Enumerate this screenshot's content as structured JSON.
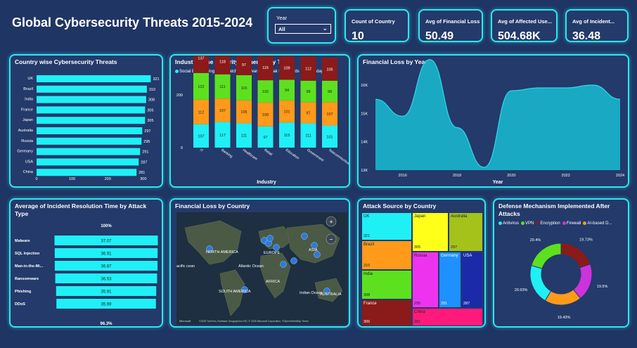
{
  "title": "Global Cybersecurity Threats 2015-2024",
  "slicer": {
    "label": "Year",
    "value": "All",
    "chevron": "chevron-down-icon"
  },
  "kpis": [
    {
      "label": "Count of Country",
      "value": "10"
    },
    {
      "label": "Avg of Financial Loss",
      "value": "50.49"
    },
    {
      "label": "Avg of Affected Use...",
      "value": "504.68K"
    },
    {
      "label": "Avg of Incident...",
      "value": "36.48"
    }
  ],
  "country_chart": {
    "title": "Country wise Cybersecurity Threats",
    "color": "#1ff0f5",
    "chart_data": {
      "type": "bar",
      "categories": [
        "UK",
        "Brazil",
        "India",
        "France",
        "Japan",
        "Australia",
        "Russia",
        "Germany",
        "USA",
        "China"
      ],
      "values": [
        321,
        310,
        308,
        305,
        305,
        297,
        295,
        291,
        287,
        281
      ],
      "xticks": [
        "0",
        "100",
        "200",
        "300"
      ],
      "xlim": [
        0,
        330
      ]
    }
  },
  "industry_chart": {
    "title": "Industry wise Security Vulnerability Type",
    "xlabel": "Industry",
    "legend": [
      {
        "name": "Social Engineering",
        "color": "#1ff0f5"
      },
      {
        "name": "Unpatched Software",
        "color": "#ff9a1a"
      },
      {
        "name": "Weak Passwords",
        "color": "#5de11f"
      },
      {
        "name": "Zero-day",
        "color": "#8b1a1a"
      }
    ],
    "chart_data": {
      "type": "bar",
      "stacked": true,
      "categories": [
        "IT",
        "Banking",
        "Healthcare",
        "Retail",
        "Education",
        "Government",
        "Telecommunications"
      ],
      "series": [
        {
          "name": "Social Engineering",
          "values": [
            107,
            117,
            111,
            97,
            115,
            111,
            101
          ]
        },
        {
          "name": "Unpatched Software",
          "values": [
            112,
            107,
            105,
            109,
            101,
            97,
            107
          ]
        },
        {
          "name": "Weak Passwords",
          "values": [
            122,
            111,
            115,
            102,
            94,
            98,
            98
          ]
        },
        {
          "name": "Zero-day",
          "values": [
            137,
            118,
            97,
            115,
            109,
            112,
            105
          ]
        }
      ],
      "yticks": [
        "0",
        "200",
        "400"
      ],
      "ylim": [
        0,
        480
      ]
    }
  },
  "loss_year_chart": {
    "title": "Financial Loss by Year",
    "xlabel": "Year",
    "color": "#1ab6cc",
    "chart_data": {
      "type": "area",
      "x": [
        2015,
        2016,
        2017,
        2018,
        2019,
        2020,
        2021,
        2022,
        2023,
        2024
      ],
      "values": [
        15500,
        14900,
        16900,
        14500,
        13100,
        15800,
        15900,
        15900,
        16000,
        15500
      ],
      "yticks": [
        "13K",
        "14K",
        "15K",
        "16K"
      ],
      "xticks": [
        "2016",
        "2018",
        "2020",
        "2022",
        "2024"
      ],
      "ylim": [
        13000,
        17000
      ]
    }
  },
  "resolution_chart": {
    "title": "Average of Incident Resolution Time by Attack Type",
    "top_label": "100%",
    "bottom_label": "96.3%",
    "color": "#1ff0f5",
    "chart_data": {
      "type": "bar",
      "categories": [
        "Malware",
        "SQL Injection",
        "Man-in-the-Mi...",
        "Ransomware",
        "Phishing",
        "DDoS"
      ],
      "values": [
        37.07,
        36.91,
        36.87,
        36.53,
        35.91,
        35.69
      ],
      "labels": [
        "37.07",
        "36.91",
        "36.87",
        "36.53",
        "35.91",
        "35.69"
      ]
    }
  },
  "map": {
    "title": "Financial Loss by Country",
    "labels": [
      "NORTH AMERICA",
      "EUROPE",
      "ASIA",
      "Atlantic Ocean",
      "AFRICA",
      "SOUTH AMERICA",
      "AUSTRALIA",
      "Indian Ocean",
      "acific cean"
    ],
    "attribution": "©2025 TomTom, Earthstar Geographics SIO, © 2025 Microsoft Corporation, ©OpenStreetMap  Terms",
    "brand": "Microsoft",
    "zoom_in": "+",
    "zoom_out": "−"
  },
  "treemap": {
    "title": "Attack Source by Country",
    "cells": [
      {
        "name": "UK",
        "value": "321",
        "color": "#1ff0f5"
      },
      {
        "name": "Brazil",
        "value": "310",
        "color": "#ff9a1a"
      },
      {
        "name": "India",
        "value": "308",
        "color": "#5de11f"
      },
      {
        "name": "France",
        "value": "305",
        "color": "#8b1a1a"
      },
      {
        "name": "Japan",
        "value": "305",
        "color": "#ffff1a"
      },
      {
        "name": "Australia",
        "value": "297",
        "color": "#a4c21a"
      },
      {
        "name": "Russia",
        "value": "295",
        "color": "#ee33ee"
      },
      {
        "name": "Germany",
        "value": "291",
        "color": "#1e90ff"
      },
      {
        "name": "USA",
        "value": "287",
        "color": "#1a2aa8"
      },
      {
        "name": "China",
        "value": "281",
        "color": "#ff1a7c"
      }
    ]
  },
  "donut": {
    "title": "Defense Mechanism Implemented After Attacks",
    "legend": [
      {
        "name": "Antivirus",
        "color": "#1ff0f5"
      },
      {
        "name": "VPN",
        "color": "#5de11f"
      },
      {
        "name": "Encryption",
        "color": "#8b1a1a"
      },
      {
        "name": "Firewall",
        "color": "#cc33dd"
      },
      {
        "name": "AI-based D...",
        "color": "#ff9a1a"
      }
    ],
    "chart_data": {
      "type": "pie",
      "categories": [
        "Antivirus",
        "VPN",
        "Encryption",
        "Firewall",
        "AI-based Detection"
      ],
      "values": [
        20.93,
        20.4,
        19.73,
        19.5,
        19.43
      ],
      "labels": [
        "20.93%",
        "20.4%",
        "19.73%",
        "19.5%",
        "19.43%"
      ]
    }
  }
}
